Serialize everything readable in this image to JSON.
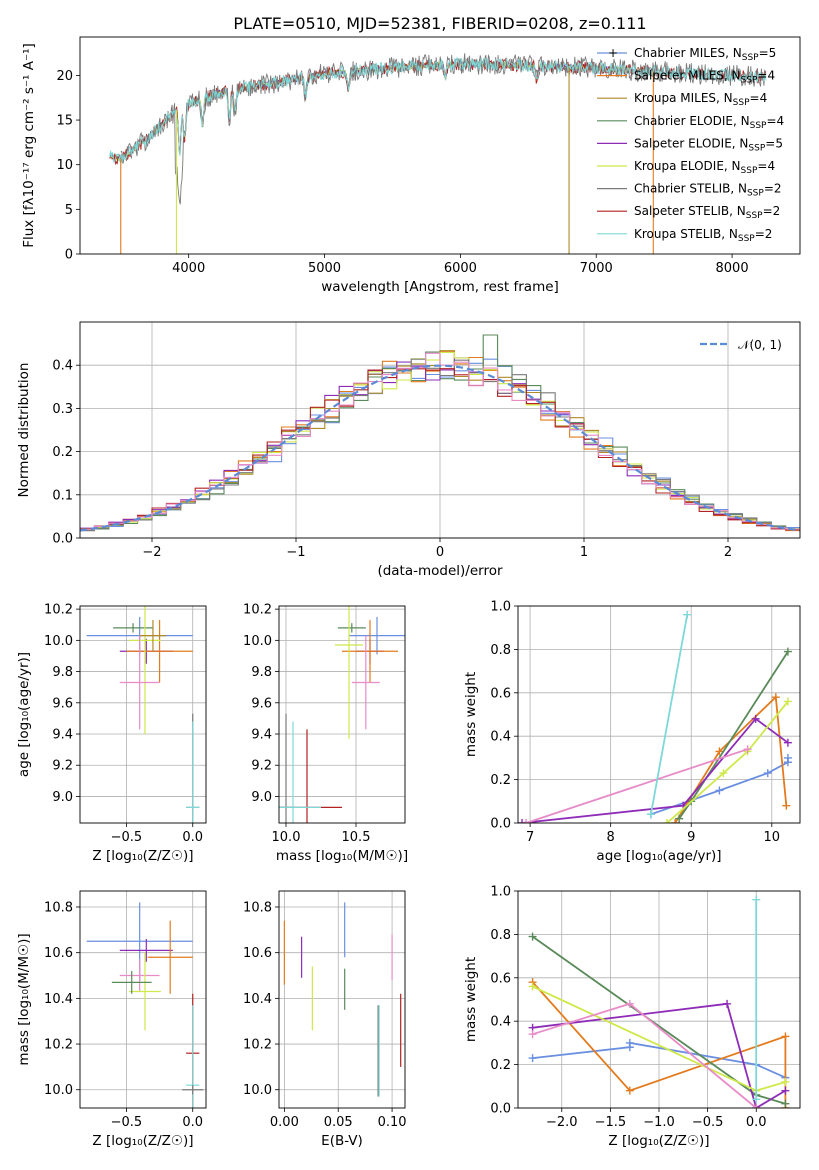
{
  "figure": {
    "title": "PLATE=0510, MJD=52381, FIBERID=0208, z=0.111"
  },
  "colors": {
    "Chabrier MILES": "#6a8fe0",
    "Salpeter MILES": "#e37b1e",
    "Kroupa MILES": "#b08a2a",
    "Chabrier ELODIE": "#5a8a5a",
    "Salpeter ELODIE": "#8e2cb8",
    "Kroupa ELODIE": "#cfe84a",
    "Chabrier STELIB": "#7a7a7a",
    "Salpeter STELIB": "#b22222",
    "Kroupa STELIB": "#7fd8d8",
    "Salpeter MILES hist": "#e88cc8",
    "gaussian": "#5b8bd6",
    "grid": "#b0b0b0"
  },
  "chart_data": [
    {
      "id": "spectrum",
      "type": "line",
      "xlabel": "wavelength [Angstrom, rest frame]",
      "ylabel": "Flux [fλ10⁻¹⁷ erg cm⁻² s⁻¹ A⁻¹]",
      "xlim": [
        3200,
        8500
      ],
      "ylim": [
        0,
        24.3
      ],
      "xticks": [
        4000,
        5000,
        6000,
        7000,
        8000
      ],
      "yticks": [
        0,
        5,
        10,
        15,
        20
      ],
      "grid": false,
      "legend_position": "right",
      "legend": [
        {
          "label": "Chabrier MILES, N",
          "sub": "SSP",
          "suffix": "=5"
        },
        {
          "label": "Salpeter MILES, N",
          "sub": "SSP",
          "suffix": "=4"
        },
        {
          "label": "Kroupa MILES, N",
          "sub": "SSP",
          "suffix": "=4"
        },
        {
          "label": "Chabrier ELODIE, N",
          "sub": "SSP",
          "suffix": "=4"
        },
        {
          "label": "Salpeter ELODIE, N",
          "sub": "SSP",
          "suffix": "=5"
        },
        {
          "label": "Kroupa ELODIE, N",
          "sub": "SSP",
          "suffix": "=4"
        },
        {
          "label": "Chabrier STELIB, N",
          "sub": "SSP",
          "suffix": "=2"
        },
        {
          "label": "Salpeter STELIB, N",
          "sub": "SSP",
          "suffix": "=2"
        },
        {
          "label": "Kroupa STELIB, N",
          "sub": "SSP",
          "suffix": "=2"
        }
      ],
      "continuum": {
        "x": [
          3420,
          3500,
          3600,
          3700,
          3800,
          3900,
          4000,
          4200,
          4500,
          4800,
          5000,
          5300,
          5600,
          6000,
          6300,
          6600,
          6900,
          7200,
          7500,
          7800,
          8000,
          8250
        ],
        "y": [
          11.0,
          10.6,
          11.8,
          13.0,
          14.5,
          16.0,
          16.8,
          18.0,
          18.8,
          19.6,
          20.2,
          20.6,
          21.0,
          21.3,
          21.2,
          21.0,
          20.9,
          20.6,
          20.4,
          20.1,
          20.0,
          19.8
        ]
      },
      "dips": [
        {
          "series": "Salpeter MILES",
          "x": [
            3500,
            7420
          ],
          "y": 0
        },
        {
          "series": "Kroupa ELODIE",
          "x": [
            3910
          ],
          "y": 0
        },
        {
          "series": "Kroupa MILES",
          "x": [
            6800
          ],
          "y": 0
        }
      ]
    },
    {
      "id": "residuals",
      "type": "line",
      "xlabel": "(data-model)/error",
      "ylabel": "Normed distribution",
      "xlim": [
        -2.5,
        2.5
      ],
      "ylim": [
        0,
        0.5
      ],
      "xticks": [
        -2,
        -1,
        0,
        1,
        2
      ],
      "xticklabels": [
        "−2",
        "−1",
        "0",
        "1",
        "2"
      ],
      "yticks": [
        0.0,
        0.1,
        0.2,
        0.3,
        0.4
      ],
      "yticklabels": [
        "0.0",
        "0.1",
        "0.2",
        "0.3",
        "0.4"
      ],
      "grid": true,
      "legend_position": "upper right",
      "legend_label": "𝒩(0, 1)",
      "gaussian": {
        "mean": 0,
        "sigma": 1
      },
      "bin_width": 0.1
    },
    {
      "id": "age-vs-Z",
      "type": "scatter",
      "xlabel": "Z [log₁₀(Z/Z☉)]",
      "ylabel": "age  [log₁₀(age/yr)]",
      "xlim": [
        -0.85,
        0.1
      ],
      "ylim": [
        8.83,
        10.22
      ],
      "xticks": [
        -0.5,
        0.0
      ],
      "xticklabels": [
        "−0.5",
        "0.0"
      ],
      "yticks": [
        9.0,
        9.2,
        9.4,
        9.6,
        9.8,
        10.0,
        10.2
      ],
      "yticklabels": [
        "9.0",
        "9.2",
        "9.4",
        "9.6",
        "9.8",
        "10.0",
        "10.2"
      ],
      "grid": true,
      "points": [
        {
          "series": "Chabrier MILES",
          "x": -0.4,
          "xerr": 0.4,
          "y": 10.03,
          "yerr": 0.12
        },
        {
          "series": "Chabrier ELODIE",
          "x": -0.45,
          "xerr": 0.15,
          "y": 10.08,
          "yerr": 0.03
        },
        {
          "series": "Salpeter ELODIE",
          "x": -0.35,
          "xerr": 0.2,
          "y": 9.93,
          "yerr": 0.08
        },
        {
          "series": "Salpeter MILES",
          "x": -0.25,
          "xerr": 0.25,
          "y": 9.93,
          "yerr": 0.2
        },
        {
          "series": "Kroupa ELODIE",
          "x": -0.36,
          "xerr": 0.12,
          "y": 10.0,
          "yerr": 0.6
        },
        {
          "series": "Salpeter MILES hist",
          "x": -0.4,
          "xerr": 0.15,
          "y": 9.73,
          "yerr": 0.3
        },
        {
          "series": "Kroupa MILES",
          "x": -0.3,
          "xerr": 0.1,
          "y": 10.03,
          "yerr": 0.1
        },
        {
          "series": "Chabrier STELIB",
          "x": 0.0,
          "xerr": 0.05,
          "y": 8.93,
          "yerr": 0.6
        },
        {
          "series": "Kroupa STELIB",
          "x": 0.0,
          "xerr": 0.05,
          "y": 8.93,
          "yerr": 0.55
        }
      ]
    },
    {
      "id": "age-vs-mass",
      "type": "scatter",
      "xlabel": "mass [log₁₀(M/M☉)]",
      "ylabel": "",
      "xlim": [
        9.95,
        10.85
      ],
      "ylim": [
        8.83,
        10.22
      ],
      "xticks": [
        10.0,
        10.5
      ],
      "xticklabels": [
        "10.0",
        "10.5"
      ],
      "yticks": [
        9.0,
        9.2,
        9.4,
        9.6,
        9.8,
        10.0,
        10.2
      ],
      "yticklabels": [
        "9.0",
        "9.2",
        "9.4",
        "9.6",
        "9.8",
        "10.0",
        "10.2"
      ],
      "grid": true,
      "points": [
        {
          "series": "Chabrier MILES",
          "x": 10.65,
          "xerr": 0.2,
          "y": 10.03,
          "yerr": 0.12
        },
        {
          "series": "Chabrier ELODIE",
          "x": 10.47,
          "xerr": 0.1,
          "y": 10.08,
          "yerr": 0.03
        },
        {
          "series": "Salpeter ELODIE",
          "x": 10.6,
          "xerr": 0.1,
          "y": 9.93,
          "yerr": 0.08
        },
        {
          "series": "Salpeter MILES",
          "x": 10.6,
          "xerr": 0.2,
          "y": 9.93,
          "yerr": 0.2
        },
        {
          "series": "Kroupa ELODIE",
          "x": 10.45,
          "xerr": 0.1,
          "y": 9.97,
          "yerr": 0.6
        },
        {
          "series": "Salpeter MILES hist",
          "x": 10.57,
          "xerr": 0.1,
          "y": 9.73,
          "yerr": 0.3
        },
        {
          "series": "Salpeter STELIB",
          "x": 10.15,
          "xerr": 0.25,
          "y": 8.93,
          "yerr": 0.5
        },
        {
          "series": "Chabrier STELIB",
          "x": 10.0,
          "xerr": 0.05,
          "y": 8.93,
          "yerr": 0.6
        },
        {
          "series": "Kroupa STELIB",
          "x": 10.05,
          "xerr": 0.2,
          "y": 8.93,
          "yerr": 0.55
        }
      ]
    },
    {
      "id": "weight-vs-age",
      "type": "line",
      "xlabel": "age  [log₁₀(age/yr)]",
      "ylabel": "mass weight",
      "xlim": [
        6.85,
        10.35
      ],
      "ylim": [
        0.0,
        1.0
      ],
      "xticks": [
        7,
        8,
        9,
        10
      ],
      "xticklabels": [
        "7",
        "8",
        "9",
        "10"
      ],
      "yticks": [
        0.0,
        0.2,
        0.4,
        0.6,
        0.8,
        1.0
      ],
      "yticklabels": [
        "0.0",
        "0.2",
        "0.4",
        "0.6",
        "0.8",
        "1.0"
      ],
      "grid": true,
      "series": [
        {
          "name": "Chabrier MILES",
          "x": [
            8.5,
            9.35,
            9.95,
            10.2,
            10.2
          ],
          "y": [
            0.04,
            0.15,
            0.23,
            0.28,
            0.3
          ]
        },
        {
          "name": "Salpeter MILES",
          "x": [
            8.8,
            9.35,
            10.05,
            10.18
          ],
          "y": [
            0.0,
            0.33,
            0.58,
            0.08
          ]
        },
        {
          "name": "Chabrier ELODIE",
          "x": [
            8.85,
            9.0,
            10.2
          ],
          "y": [
            0.02,
            0.1,
            0.79
          ]
        },
        {
          "name": "Salpeter ELODIE",
          "x": [
            6.9,
            8.9,
            9.8,
            10.2
          ],
          "y": [
            0.0,
            0.08,
            0.48,
            0.37
          ]
        },
        {
          "name": "Kroupa ELODIE",
          "x": [
            8.7,
            9.4,
            9.7,
            10.2
          ],
          "y": [
            0.0,
            0.23,
            0.33,
            0.56
          ]
        },
        {
          "name": "Salpeter MILES hist",
          "x": [
            6.95,
            9.7
          ],
          "y": [
            0.0,
            0.34
          ]
        },
        {
          "name": "Kroupa STELIB",
          "x": [
            8.5,
            8.95
          ],
          "y": [
            0.04,
            0.96
          ]
        }
      ]
    },
    {
      "id": "mass-vs-Z",
      "type": "scatter",
      "xlabel": "Z [log₁₀(Z/Z☉)]",
      "ylabel": "mass [log₁₀(M/M☉)]",
      "xlim": [
        -0.85,
        0.1
      ],
      "ylim": [
        9.92,
        10.87
      ],
      "xticks": [
        -0.5,
        0.0
      ],
      "xticklabels": [
        "−0.5",
        "0.0"
      ],
      "yticks": [
        10.0,
        10.2,
        10.4,
        10.6,
        10.8
      ],
      "yticklabels": [
        "10.0",
        "10.2",
        "10.4",
        "10.6",
        "10.8"
      ],
      "grid": true,
      "points": [
        {
          "series": "Chabrier MILES",
          "x": -0.4,
          "xerr": 0.4,
          "y": 10.65,
          "yerr": 0.17
        },
        {
          "series": "Salpeter ELODIE",
          "x": -0.35,
          "xerr": 0.2,
          "y": 10.61,
          "yerr": 0.05
        },
        {
          "series": "Salpeter MILES",
          "x": -0.17,
          "xerr": 0.17,
          "y": 10.58,
          "yerr": 0.16
        },
        {
          "series": "Salpeter MILES hist",
          "x": -0.4,
          "xerr": 0.15,
          "y": 10.5,
          "yerr": 0.07
        },
        {
          "series": "Kroupa ELODIE",
          "x": -0.36,
          "xerr": 0.12,
          "y": 10.43,
          "yerr": 0.17
        },
        {
          "series": "Chabrier ELODIE",
          "x": -0.46,
          "xerr": 0.15,
          "y": 10.47,
          "yerr": 0.05
        },
        {
          "series": "Salpeter STELIB",
          "x": 0.0,
          "xerr": 0.05,
          "y": 10.16,
          "yerr": 0.26
        },
        {
          "series": "Kroupa STELIB",
          "x": 0.0,
          "xerr": 0.05,
          "y": 10.02,
          "yerr": 0.35
        },
        {
          "series": "Chabrier STELIB",
          "x": 0.0,
          "xerr": 0.08,
          "y": 10.0,
          "yerr": 0.02
        }
      ]
    },
    {
      "id": "mass-vs-ebv",
      "type": "scatter",
      "xlabel": "E(B-V)",
      "ylabel": "",
      "xlim": [
        -0.005,
        0.112
      ],
      "ylim": [
        9.92,
        10.87
      ],
      "xticks": [
        0.0,
        0.05,
        0.1
      ],
      "xticklabels": [
        "0.00",
        "0.05",
        "0.10"
      ],
      "yticks": [
        10.0,
        10.2,
        10.4,
        10.6,
        10.8
      ],
      "yticklabels": [
        "10.0",
        "10.2",
        "10.4",
        "10.6",
        "10.8"
      ],
      "grid": true,
      "points": [
        {
          "series": "Salpeter MILES",
          "x": 0.0,
          "xerr": 0.0,
          "y": 10.6,
          "yerr": 0.14
        },
        {
          "series": "Salpeter ELODIE",
          "x": 0.016,
          "xerr": 0.0,
          "y": 10.58,
          "yerr": 0.09
        },
        {
          "series": "Kroupa ELODIE",
          "x": 0.026,
          "xerr": 0.0,
          "y": 10.4,
          "yerr": 0.14
        },
        {
          "series": "Chabrier MILES",
          "x": 0.056,
          "xerr": 0.0,
          "y": 10.7,
          "yerr": 0.12
        },
        {
          "series": "Chabrier ELODIE",
          "x": 0.056,
          "xerr": 0.0,
          "y": 10.44,
          "yerr": 0.09
        },
        {
          "series": "Chabrier STELIB",
          "x": 0.087,
          "xerr": 0.0,
          "y": 10.17,
          "yerr": 0.2
        },
        {
          "series": "Kroupa STELIB",
          "x": 0.088,
          "xerr": 0.0,
          "y": 10.17,
          "yerr": 0.2
        },
        {
          "series": "Salpeter MILES hist",
          "x": 0.1,
          "xerr": 0.0,
          "y": 10.58,
          "yerr": 0.1
        },
        {
          "series": "Salpeter STELIB",
          "x": 0.108,
          "xerr": 0.0,
          "y": 10.26,
          "yerr": 0.16
        }
      ]
    },
    {
      "id": "weight-vs-Z",
      "type": "line",
      "xlabel": "Z [log₁₀(Z/Z☉)]",
      "ylabel": "mass weight",
      "xlim": [
        -2.45,
        0.45
      ],
      "ylim": [
        0.0,
        1.0
      ],
      "xticks": [
        -2.0,
        -1.5,
        -1.0,
        -0.5,
        0.0
      ],
      "xticklabels": [
        "−2.0",
        "−1.5",
        "−1.0",
        "−0.5",
        "0.0"
      ],
      "yticks": [
        0.0,
        0.2,
        0.4,
        0.6,
        0.8,
        1.0
      ],
      "yticklabels": [
        "0.0",
        "0.2",
        "0.4",
        "0.6",
        "0.8",
        "1.0"
      ],
      "grid": true,
      "series": [
        {
          "name": "Chabrier MILES",
          "x": [
            -2.3,
            -1.3,
            -1.3,
            0.0,
            0.3
          ],
          "y": [
            0.23,
            0.28,
            0.3,
            0.2,
            0.14
          ]
        },
        {
          "name": "Salpeter MILES",
          "x": [
            -2.3,
            -1.3,
            0.3,
            0.3
          ],
          "y": [
            0.58,
            0.08,
            0.33,
            0.0
          ]
        },
        {
          "name": "Chabrier ELODIE",
          "x": [
            -2.3,
            0.0,
            0.3
          ],
          "y": [
            0.79,
            0.06,
            0.02
          ]
        },
        {
          "name": "Salpeter ELODIE",
          "x": [
            -2.3,
            -0.3,
            0.0,
            0.3
          ],
          "y": [
            0.37,
            0.48,
            0.0,
            0.08
          ]
        },
        {
          "name": "Kroupa ELODIE",
          "x": [
            -2.3,
            0.0,
            0.3
          ],
          "y": [
            0.56,
            0.08,
            0.12
          ]
        },
        {
          "name": "Salpeter MILES hist",
          "x": [
            -2.3,
            -1.3,
            0.0
          ],
          "y": [
            0.34,
            0.48,
            0.0
          ]
        },
        {
          "name": "Kroupa STELIB",
          "x": [
            0.0,
            0.0
          ],
          "y": [
            0.96,
            0.04
          ]
        }
      ]
    }
  ]
}
